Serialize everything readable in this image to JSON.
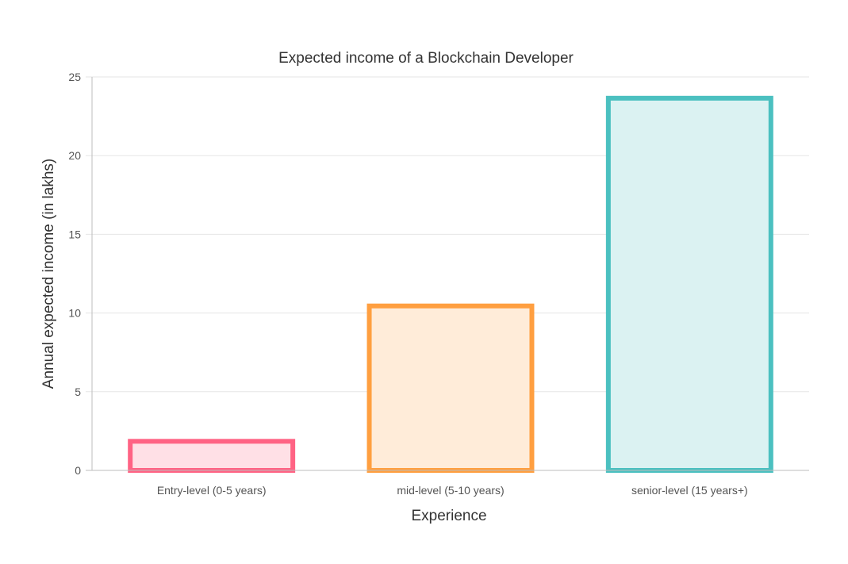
{
  "chart_data": {
    "type": "bar",
    "title": "Expected income of a Blockchain Developer",
    "xlabel": "Experience",
    "ylabel": "Annual expected income (in lakhs)",
    "categories": [
      "Entry-level (0-5 years)",
      "mid-level (5-10 years)",
      "senior-level (15 years+)"
    ],
    "values": [
      2,
      10.6,
      23.8
    ],
    "ylim": [
      0,
      25
    ],
    "yticks": [
      "0",
      "5",
      "10",
      "15",
      "20",
      "25"
    ],
    "grid": true,
    "legend": "none",
    "colors": {
      "border": [
        "#ff6384",
        "#ff9f40",
        "#4bc0c0"
      ],
      "fill": [
        "#ffe0e6",
        "#ffecd9",
        "#dbf2f2"
      ]
    }
  }
}
